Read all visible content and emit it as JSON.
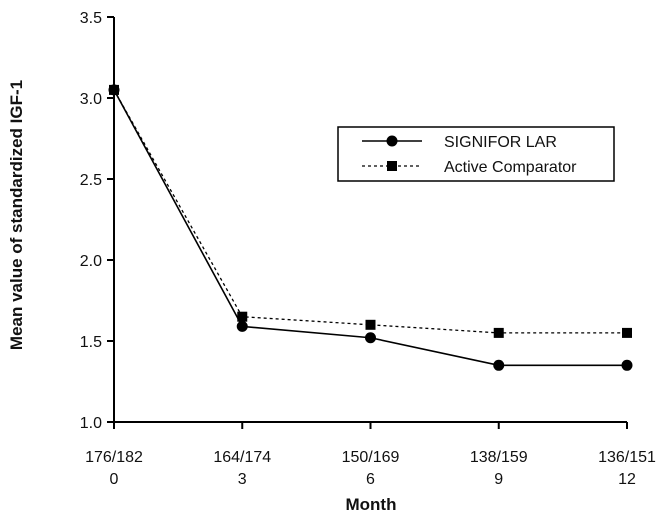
{
  "chart_data": {
    "type": "line",
    "title": "",
    "xlabel": "Month",
    "ylabel": "Mean value of standardized IGF-1",
    "x": [
      0,
      3,
      6,
      9,
      12
    ],
    "x_tick_labels": [
      "0",
      "3",
      "6",
      "9",
      "12"
    ],
    "x_n_labels": [
      "176/182",
      "164/174",
      "150/169",
      "138/159",
      "136/151"
    ],
    "xlim": [
      0,
      12
    ],
    "ylim": [
      1.0,
      3.5
    ],
    "y_ticks": [
      "1.0",
      "1.5",
      "2.0",
      "2.5",
      "3.0",
      "3.5"
    ],
    "grid": false,
    "legend_position": "upper-right",
    "series": [
      {
        "name": "SIGNIFOR LAR",
        "marker": "circle",
        "line_style": "solid",
        "color": "#000000",
        "values": [
          3.05,
          1.59,
          1.52,
          1.35,
          1.35
        ]
      },
      {
        "name": "Active Comparator",
        "marker": "square",
        "line_style": "dotted",
        "color": "#000000",
        "values": [
          3.05,
          1.65,
          1.6,
          1.55,
          1.55
        ]
      }
    ]
  }
}
